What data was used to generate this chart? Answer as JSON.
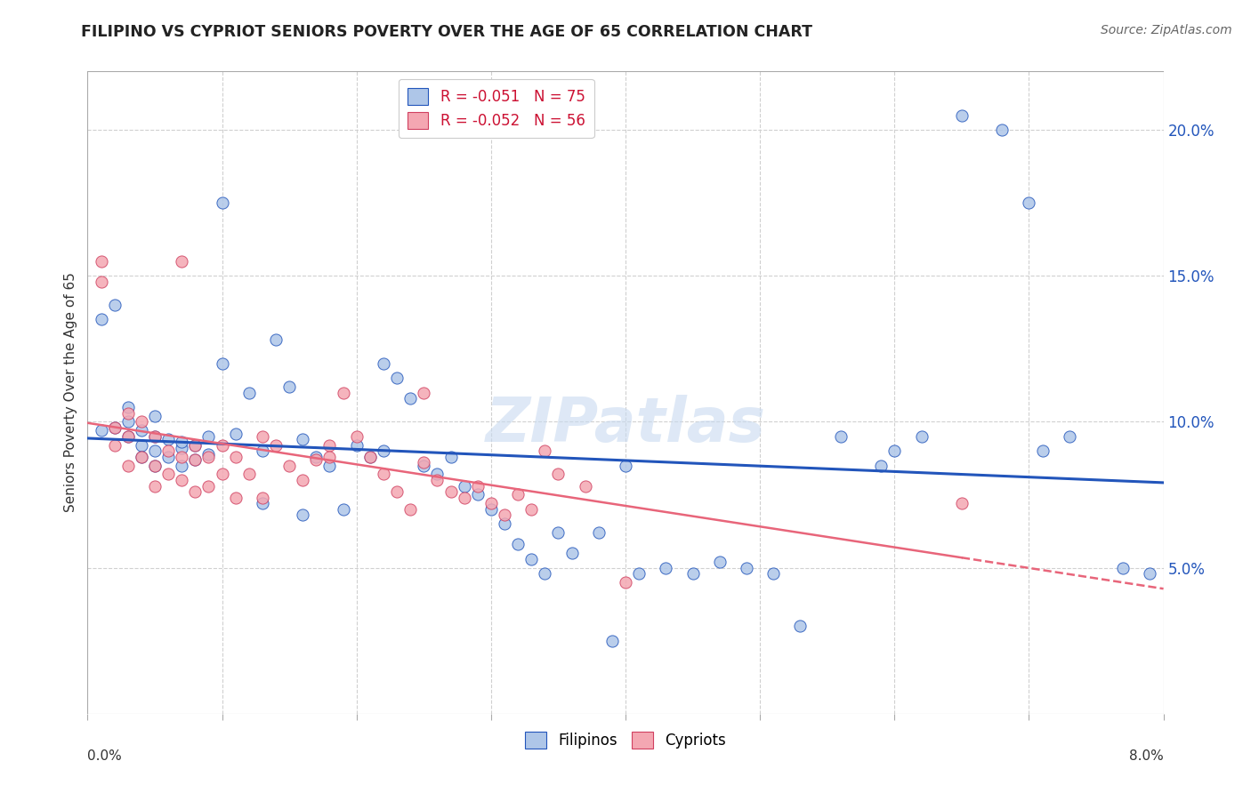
{
  "title": "FILIPINO VS CYPRIOT SENIORS POVERTY OVER THE AGE OF 65 CORRELATION CHART",
  "source": "Source: ZipAtlas.com",
  "ylabel": "Seniors Poverty Over the Age of 65",
  "legend_filipino": {
    "R": "-0.051",
    "N": "75",
    "color": "#aec6e8"
  },
  "legend_cypriot": {
    "R": "-0.052",
    "N": "56",
    "color": "#f4a7b2"
  },
  "filipino_color": "#aec6e8",
  "cypriot_color": "#f4a7b2",
  "filipino_line_color": "#2255bb",
  "cypriot_line_color": "#e8657a",
  "background_color": "#ffffff",
  "grid_color": "#d0d0d0",
  "watermark": "ZIPatlas",
  "right_yticks": [
    0.05,
    0.1,
    0.15,
    0.2
  ],
  "right_yticklabels": [
    "5.0%",
    "10.0%",
    "15.0%",
    "20.0%"
  ],
  "xlim": [
    0.0,
    0.08
  ],
  "ylim": [
    0.0,
    0.22
  ],
  "filipino_x": [
    0.001,
    0.001,
    0.002,
    0.002,
    0.003,
    0.003,
    0.003,
    0.004,
    0.004,
    0.004,
    0.005,
    0.005,
    0.005,
    0.005,
    0.006,
    0.006,
    0.007,
    0.007,
    0.007,
    0.008,
    0.008,
    0.009,
    0.009,
    0.01,
    0.01,
    0.011,
    0.012,
    0.013,
    0.013,
    0.014,
    0.015,
    0.016,
    0.016,
    0.017,
    0.018,
    0.019,
    0.02,
    0.021,
    0.022,
    0.022,
    0.023,
    0.024,
    0.025,
    0.026,
    0.027,
    0.028,
    0.029,
    0.03,
    0.031,
    0.032,
    0.033,
    0.034,
    0.035,
    0.036,
    0.038,
    0.039,
    0.04,
    0.041,
    0.043,
    0.045,
    0.047,
    0.049,
    0.051,
    0.053,
    0.056,
    0.059,
    0.06,
    0.062,
    0.065,
    0.068,
    0.07,
    0.071,
    0.073,
    0.077,
    0.079
  ],
  "filipino_y": [
    0.135,
    0.097,
    0.14,
    0.098,
    0.095,
    0.1,
    0.105,
    0.092,
    0.097,
    0.088,
    0.102,
    0.095,
    0.09,
    0.085,
    0.094,
    0.088,
    0.091,
    0.085,
    0.093,
    0.087,
    0.092,
    0.089,
    0.095,
    0.175,
    0.12,
    0.096,
    0.11,
    0.072,
    0.09,
    0.128,
    0.112,
    0.094,
    0.068,
    0.088,
    0.085,
    0.07,
    0.092,
    0.088,
    0.09,
    0.12,
    0.115,
    0.108,
    0.085,
    0.082,
    0.088,
    0.078,
    0.075,
    0.07,
    0.065,
    0.058,
    0.053,
    0.048,
    0.062,
    0.055,
    0.062,
    0.025,
    0.085,
    0.048,
    0.05,
    0.048,
    0.052,
    0.05,
    0.048,
    0.03,
    0.095,
    0.085,
    0.09,
    0.095,
    0.205,
    0.2,
    0.175,
    0.09,
    0.095,
    0.05,
    0.048
  ],
  "cypriot_x": [
    0.001,
    0.001,
    0.002,
    0.002,
    0.003,
    0.003,
    0.003,
    0.004,
    0.004,
    0.005,
    0.005,
    0.005,
    0.006,
    0.006,
    0.007,
    0.007,
    0.007,
    0.008,
    0.008,
    0.008,
    0.009,
    0.009,
    0.01,
    0.01,
    0.011,
    0.011,
    0.012,
    0.013,
    0.013,
    0.014,
    0.015,
    0.016,
    0.017,
    0.018,
    0.018,
    0.019,
    0.02,
    0.021,
    0.022,
    0.023,
    0.024,
    0.025,
    0.025,
    0.026,
    0.027,
    0.028,
    0.029,
    0.03,
    0.031,
    0.032,
    0.033,
    0.034,
    0.035,
    0.037,
    0.04,
    0.065
  ],
  "cypriot_y": [
    0.155,
    0.148,
    0.098,
    0.092,
    0.103,
    0.095,
    0.085,
    0.1,
    0.088,
    0.095,
    0.085,
    0.078,
    0.09,
    0.082,
    0.155,
    0.088,
    0.08,
    0.092,
    0.076,
    0.087,
    0.078,
    0.088,
    0.092,
    0.082,
    0.074,
    0.088,
    0.082,
    0.074,
    0.095,
    0.092,
    0.085,
    0.08,
    0.087,
    0.092,
    0.088,
    0.11,
    0.095,
    0.088,
    0.082,
    0.076,
    0.07,
    0.11,
    0.086,
    0.08,
    0.076,
    0.074,
    0.078,
    0.072,
    0.068,
    0.075,
    0.07,
    0.09,
    0.082,
    0.078,
    0.045,
    0.072
  ]
}
